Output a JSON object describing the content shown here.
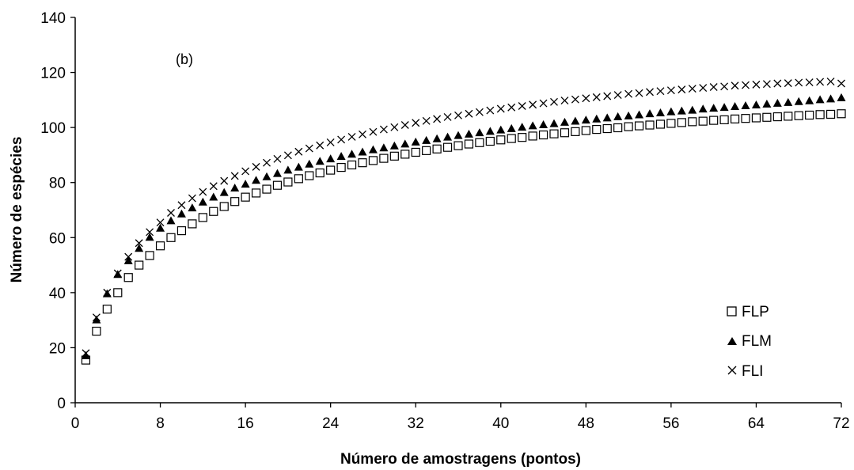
{
  "chart_data": {
    "type": "scatter",
    "panel_label": "(b)",
    "xlabel": "Número de amostragens (pontos)",
    "ylabel": "Número de espécies",
    "xlim": [
      0,
      72
    ],
    "ylim": [
      0,
      140
    ],
    "xticks": [
      0,
      8,
      16,
      24,
      32,
      40,
      48,
      56,
      64,
      72
    ],
    "yticks": [
      0,
      20,
      40,
      60,
      80,
      100,
      120,
      140
    ],
    "grid": false,
    "legend_position": "bottom-right",
    "x": [
      1,
      2,
      3,
      4,
      5,
      6,
      7,
      8,
      9,
      10,
      11,
      12,
      13,
      14,
      15,
      16,
      17,
      18,
      19,
      20,
      21,
      22,
      23,
      24,
      25,
      26,
      27,
      28,
      29,
      30,
      31,
      32,
      33,
      34,
      35,
      36,
      37,
      38,
      39,
      40,
      41,
      42,
      43,
      44,
      45,
      46,
      47,
      48,
      49,
      50,
      51,
      52,
      53,
      54,
      55,
      56,
      57,
      58,
      59,
      60,
      61,
      62,
      63,
      64,
      65,
      66,
      67,
      68,
      69,
      70,
      71,
      72
    ],
    "series": [
      {
        "name": "FLP",
        "marker": "square-open",
        "values": [
          15.5,
          26,
          34,
          40,
          45.5,
          50,
          53.5,
          57,
          60,
          62.5,
          65,
          67.3,
          69.5,
          71.3,
          73.1,
          74.7,
          76.2,
          77.6,
          79,
          80.2,
          81.4,
          82.5,
          83.5,
          84.5,
          85.5,
          86.4,
          87.2,
          88,
          88.8,
          89.6,
          90.3,
          91,
          91.6,
          92.2,
          92.8,
          93.4,
          94,
          94.5,
          95,
          95.5,
          96,
          96.4,
          96.9,
          97.3,
          97.7,
          98.1,
          98.5,
          98.9,
          99.3,
          99.6,
          99.9,
          100.3,
          100.6,
          100.9,
          101.2,
          101.5,
          101.8,
          102.1,
          102.3,
          102.6,
          102.8,
          103.1,
          103.3,
          103.5,
          103.7,
          103.9,
          104.1,
          104.3,
          104.5,
          104.7,
          104.8,
          105
        ]
      },
      {
        "name": "FLM",
        "marker": "triangle-filled",
        "values": [
          17,
          30,
          39.5,
          46.5,
          51.5,
          56,
          60,
          63.3,
          66,
          68.5,
          70.7,
          72.8,
          74.6,
          76.3,
          77.9,
          79.3,
          80.7,
          82,
          83.2,
          84.4,
          85.5,
          86.6,
          87.6,
          88.5,
          89.4,
          90.2,
          91,
          91.8,
          92.5,
          93.2,
          93.9,
          94.6,
          95.2,
          95.8,
          96.4,
          97,
          97.5,
          98,
          98.5,
          99,
          99.5,
          100,
          100.5,
          100.9,
          101.3,
          101.8,
          102.2,
          102.6,
          103,
          103.4,
          103.8,
          104.1,
          104.5,
          104.9,
          105.2,
          105.6,
          105.9,
          106.2,
          106.6,
          106.9,
          107.2,
          107.5,
          107.8,
          108.1,
          108.4,
          108.7,
          109,
          109.3,
          109.6,
          110,
          110.3,
          110.7
        ]
      },
      {
        "name": "FLI",
        "marker": "x",
        "values": [
          18,
          31,
          40,
          47,
          53,
          58,
          62,
          65.5,
          69,
          71.8,
          74.3,
          76.6,
          78.7,
          80.6,
          82.4,
          84.1,
          85.7,
          87.2,
          88.6,
          89.9,
          91.2,
          92.4,
          93.5,
          94.6,
          95.6,
          96.6,
          97.5,
          98.4,
          99.3,
          100.1,
          100.9,
          101.7,
          102.4,
          103.1,
          103.8,
          104.4,
          105,
          105.6,
          106.2,
          106.8,
          107.3,
          107.8,
          108.3,
          108.8,
          109.3,
          109.8,
          110.2,
          110.6,
          111,
          111.4,
          111.8,
          112.2,
          112.5,
          112.9,
          113.2,
          113.5,
          113.8,
          114.1,
          114.4,
          114.7,
          114.9,
          115.2,
          115.4,
          115.6,
          115.8,
          116,
          116.1,
          116.3,
          116.4,
          116.6,
          116.7,
          116
        ]
      }
    ]
  }
}
